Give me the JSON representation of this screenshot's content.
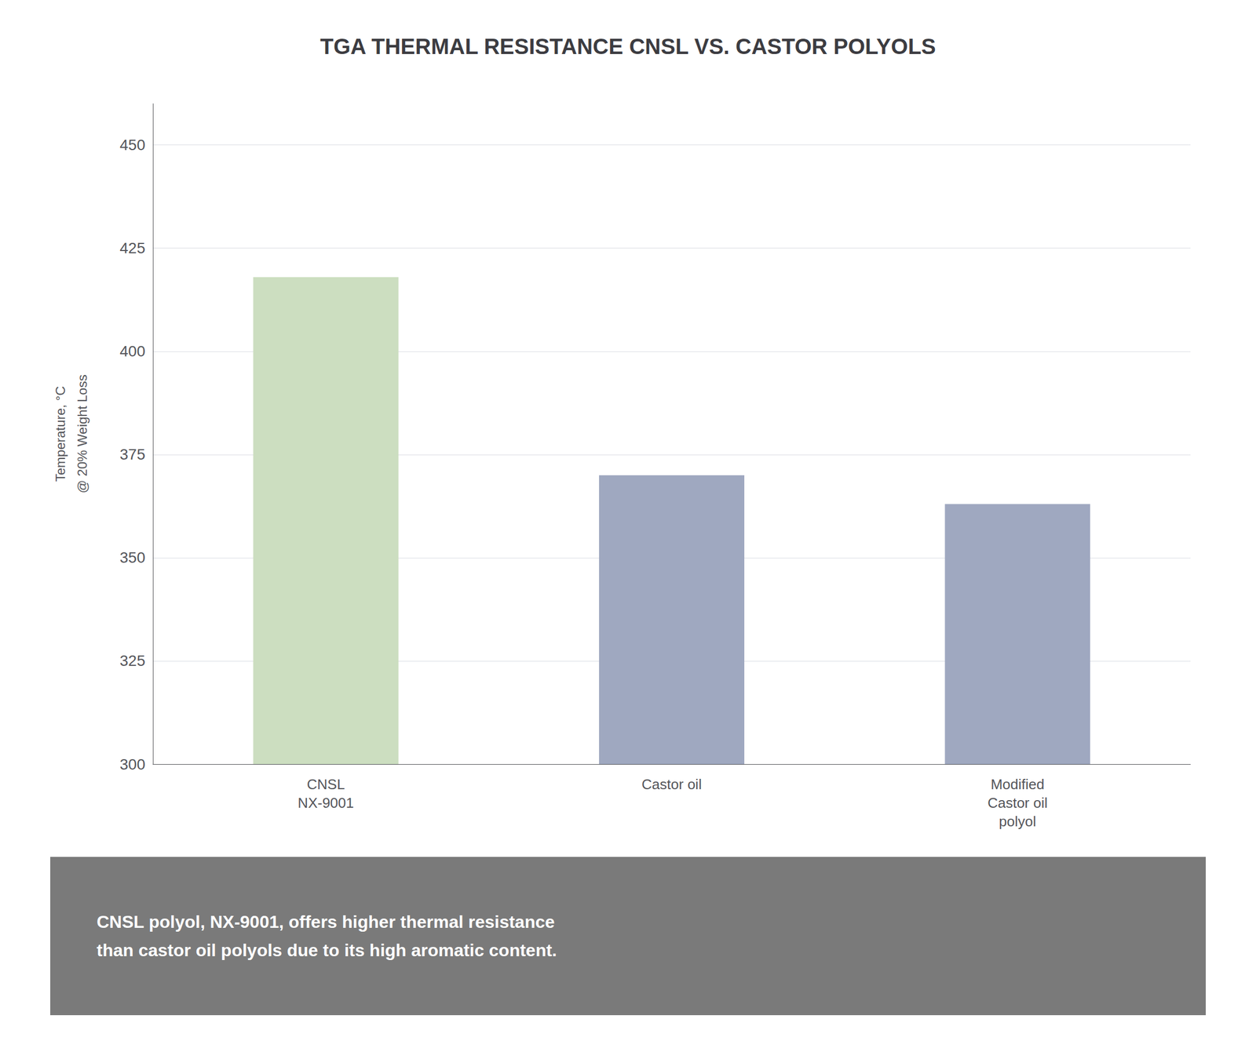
{
  "chart_data": {
    "type": "bar",
    "title": "TGA THERMAL RESISTANCE CNSL VS. CASTOR POLYOLS",
    "ylabel": "Temperature, °C\n@ 20% Weight Loss",
    "categories": [
      "CNSL\nNX-9001",
      "Castor oil",
      "Modified\nCastor oil\npolyol"
    ],
    "values": [
      418,
      370,
      363
    ],
    "colors": [
      "#ccdec0",
      "#9fa8c0",
      "#9fa8c0"
    ],
    "ylim": [
      300,
      460
    ],
    "yticks": [
      300,
      325,
      350,
      375,
      400,
      425,
      450
    ],
    "grid": true,
    "annotation": "CNSL polyol, NX-9001, offers higher thermal resistance\nthan castor oil polyols due to its high aromatic content."
  }
}
